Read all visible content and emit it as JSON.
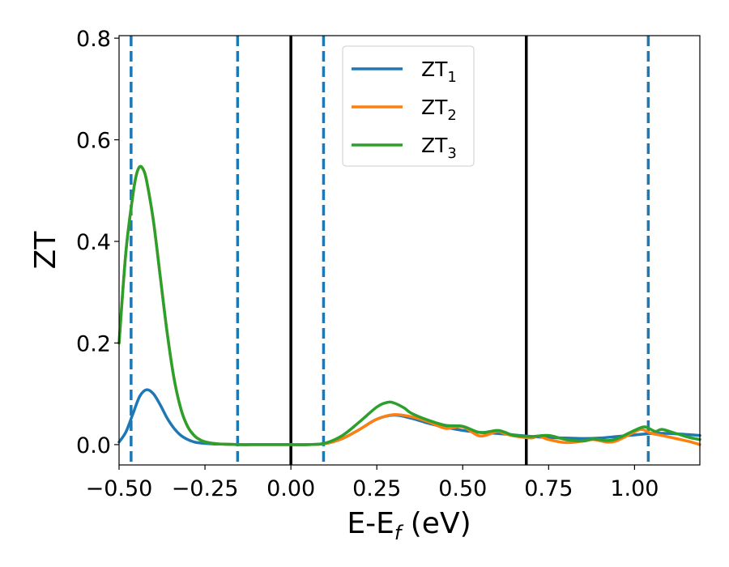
{
  "chart_data": {
    "type": "line",
    "xlabel": "E-E",
    "xlabel_sub": "f",
    "xlabel_unit": " (eV)",
    "ylabel": "ZT",
    "xlim": [
      -0.5,
      1.19
    ],
    "ylim": [
      -0.04,
      0.805
    ],
    "grid": false,
    "legend_position": "top-center",
    "x_ticks": [
      -0.5,
      -0.25,
      0.0,
      0.25,
      0.5,
      0.75,
      1.0
    ],
    "x_tick_labels": [
      "−0.50",
      "−0.25",
      "0.00",
      "0.25",
      "0.50",
      "0.75",
      "1.00"
    ],
    "y_ticks": [
      0.0,
      0.2,
      0.4,
      0.6,
      0.8
    ],
    "y_tick_labels": [
      "0.0",
      "0.2",
      "0.4",
      "0.6",
      "0.8"
    ],
    "dashed_vlines": [
      -0.465,
      -0.155,
      0.095,
      1.04
    ],
    "solid_vlines": [
      0.0,
      0.685
    ],
    "vline_colors": {
      "dashed": "#1f77b4",
      "solid": "#000000"
    },
    "series": [
      {
        "name": "ZT",
        "name_sub": "1",
        "color": "#1f77b4",
        "x": [
          -0.5,
          -0.48,
          -0.46,
          -0.44,
          -0.42,
          -0.4,
          -0.38,
          -0.36,
          -0.34,
          -0.32,
          -0.3,
          -0.28,
          -0.26,
          -0.24,
          -0.22,
          -0.2,
          -0.15,
          -0.1,
          -0.05,
          0.0,
          0.05,
          0.1,
          0.15,
          0.2,
          0.25,
          0.3,
          0.35,
          0.4,
          0.45,
          0.5,
          0.55,
          0.6,
          0.65,
          0.7,
          0.75,
          0.8,
          0.85,
          0.9,
          0.95,
          1.0,
          1.05,
          1.1,
          1.15,
          1.19
        ],
        "y": [
          0.005,
          0.025,
          0.06,
          0.095,
          0.108,
          0.1,
          0.078,
          0.052,
          0.032,
          0.018,
          0.01,
          0.005,
          0.003,
          0.002,
          0.001,
          0.001,
          0.0,
          0.0,
          0.0,
          0.0,
          0.0,
          0.002,
          0.012,
          0.03,
          0.05,
          0.058,
          0.052,
          0.042,
          0.034,
          0.028,
          0.024,
          0.022,
          0.019,
          0.016,
          0.014,
          0.013,
          0.012,
          0.013,
          0.016,
          0.019,
          0.022,
          0.022,
          0.02,
          0.018
        ]
      },
      {
        "name": "ZT",
        "name_sub": "2",
        "color": "#ff7f0e",
        "x": [
          -0.5,
          -0.48,
          -0.46,
          -0.45,
          -0.44,
          -0.43,
          -0.42,
          -0.4,
          -0.38,
          -0.36,
          -0.34,
          -0.32,
          -0.3,
          -0.28,
          -0.26,
          -0.24,
          -0.22,
          -0.2,
          -0.15,
          -0.1,
          -0.05,
          0.0,
          0.05,
          0.1,
          0.15,
          0.2,
          0.25,
          0.3,
          0.35,
          0.4,
          0.45,
          0.5,
          0.55,
          0.6,
          0.62,
          0.65,
          0.7,
          0.72,
          0.75,
          0.8,
          0.85,
          0.88,
          0.92,
          0.95,
          1.0,
          1.02,
          1.05,
          1.08,
          1.12,
          1.16,
          1.19
        ],
        "y": [
          0.2,
          0.38,
          0.49,
          0.53,
          0.547,
          0.542,
          0.52,
          0.44,
          0.33,
          0.22,
          0.13,
          0.07,
          0.035,
          0.017,
          0.008,
          0.004,
          0.002,
          0.001,
          0.0,
          0.0,
          0.0,
          0.0,
          0.0,
          0.002,
          0.012,
          0.03,
          0.05,
          0.059,
          0.055,
          0.045,
          0.032,
          0.035,
          0.017,
          0.026,
          0.022,
          0.017,
          0.013,
          0.017,
          0.01,
          0.004,
          0.007,
          0.01,
          0.005,
          0.008,
          0.025,
          0.03,
          0.022,
          0.018,
          0.012,
          0.006,
          0.0
        ]
      },
      {
        "name": "ZT",
        "name_sub": "3",
        "color": "#2ca02c",
        "x": [
          -0.5,
          -0.48,
          -0.46,
          -0.45,
          -0.44,
          -0.43,
          -0.42,
          -0.4,
          -0.38,
          -0.36,
          -0.34,
          -0.32,
          -0.3,
          -0.28,
          -0.26,
          -0.24,
          -0.22,
          -0.2,
          -0.15,
          -0.1,
          -0.05,
          0.0,
          0.05,
          0.1,
          0.15,
          0.2,
          0.25,
          0.28,
          0.3,
          0.33,
          0.35,
          0.4,
          0.45,
          0.5,
          0.55,
          0.6,
          0.62,
          0.65,
          0.7,
          0.75,
          0.8,
          0.85,
          0.88,
          0.92,
          0.95,
          1.0,
          1.03,
          1.06,
          1.08,
          1.12,
          1.16,
          1.19
        ],
        "y": [
          0.2,
          0.38,
          0.49,
          0.53,
          0.547,
          0.542,
          0.52,
          0.44,
          0.33,
          0.22,
          0.13,
          0.07,
          0.035,
          0.017,
          0.008,
          0.004,
          0.002,
          0.001,
          0.0,
          0.0,
          0.0,
          0.0,
          0.0,
          0.003,
          0.018,
          0.045,
          0.074,
          0.083,
          0.082,
          0.072,
          0.062,
          0.048,
          0.038,
          0.036,
          0.024,
          0.028,
          0.025,
          0.018,
          0.016,
          0.018,
          0.01,
          0.007,
          0.011,
          0.008,
          0.012,
          0.028,
          0.035,
          0.026,
          0.03,
          0.022,
          0.014,
          0.01
        ]
      }
    ]
  }
}
